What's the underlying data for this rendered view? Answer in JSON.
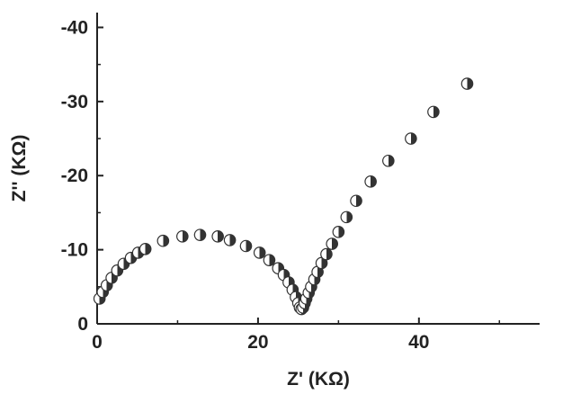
{
  "chart_data": {
    "type": "scatter",
    "title": "",
    "xlabel": "Z' (KΩ)",
    "ylabel": "Z'' (KΩ)",
    "xlim": [
      0,
      55
    ],
    "ylim": [
      0,
      -42
    ],
    "y_axis_inverted": true,
    "grid": false,
    "x_ticks": [
      {
        "value": 0,
        "label": "0"
      },
      {
        "value": 20,
        "label": "20"
      },
      {
        "value": 40,
        "label": "40"
      }
    ],
    "y_ticks": [
      {
        "value": 0,
        "label": "0"
      },
      {
        "value": -10,
        "label": "-10"
      },
      {
        "value": -20,
        "label": "-20"
      },
      {
        "value": -30,
        "label": "-30"
      },
      {
        "value": -40,
        "label": "-40"
      }
    ],
    "marker": "half-filled circle",
    "colors": {
      "marker_dark": "#333333",
      "marker_light": "#ffffff",
      "axis": "#222222"
    },
    "series": [
      {
        "x": [
          0.3,
          0.7,
          1.2,
          1.8,
          2.5,
          3.3,
          4.2,
          5.1,
          6.0,
          8.2,
          10.6,
          12.8,
          15.0,
          16.5,
          18.5,
          20.2,
          21.4,
          22.5,
          23.2,
          23.8,
          24.3,
          24.7,
          25.0,
          25.2,
          25.4,
          25.6,
          25.8,
          26.0,
          26.3,
          26.6,
          27.0,
          27.4,
          27.9,
          28.5,
          29.2,
          30.0,
          31.0,
          32.2,
          34.0,
          36.2,
          39.0,
          41.8,
          46.0
        ],
        "y": [
          -3.4,
          -4.3,
          -5.2,
          -6.2,
          -7.2,
          -8.1,
          -8.9,
          -9.6,
          -10.1,
          -11.2,
          -11.8,
          -12.0,
          -11.8,
          -11.3,
          -10.5,
          -9.6,
          -8.6,
          -7.5,
          -6.6,
          -5.6,
          -4.6,
          -3.6,
          -2.8,
          -2.2,
          -2.0,
          -2.2,
          -2.8,
          -3.4,
          -4.2,
          -5.0,
          -6.0,
          -7.0,
          -8.2,
          -9.4,
          -10.8,
          -12.4,
          -14.4,
          -16.6,
          -19.2,
          -22.0,
          -25.0,
          -28.6,
          -32.4
        ]
      }
    ]
  }
}
